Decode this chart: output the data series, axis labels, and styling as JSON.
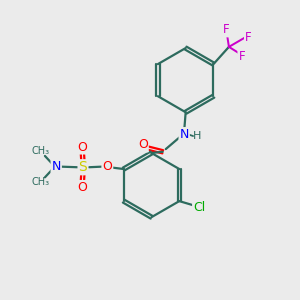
{
  "background_color": "#ebebeb",
  "bond_color": "#2d6b5e",
  "atom_colors": {
    "O": "#ff0000",
    "N": "#0000ff",
    "S": "#cccc00",
    "Cl": "#00aa00",
    "F": "#cc00cc",
    "H": "#2d6b5e",
    "C": "#2d6b5e"
  },
  "figsize": [
    3.0,
    3.0
  ],
  "dpi": 100
}
